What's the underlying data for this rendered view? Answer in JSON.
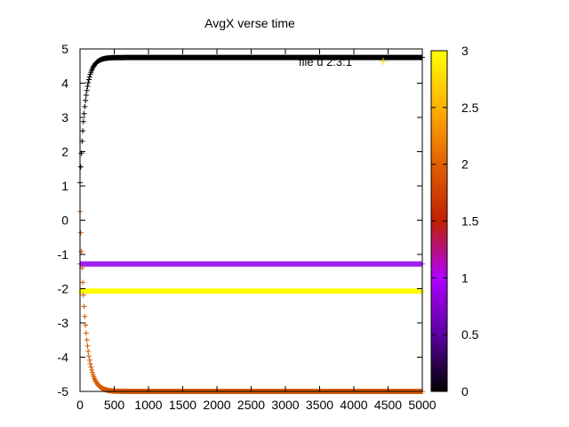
{
  "chart_data": {
    "type": "scatter",
    "title": "AvgX  verse time",
    "xlabel": "",
    "ylabel": "",
    "xlim": [
      0,
      5000
    ],
    "ylim": [
      -5,
      5
    ],
    "x_ticks": [
      "0",
      "500",
      "1000",
      "1500",
      "2000",
      "2500",
      "3000",
      "3500",
      "4000",
      "4500",
      "5000"
    ],
    "y_ticks": [
      "5",
      "4",
      "3",
      "2",
      "1",
      "0",
      "-1",
      "-2",
      "-3",
      "-4",
      "-5"
    ],
    "grid": false,
    "marker": "plus",
    "legend": {
      "label": "file u 2:3:1",
      "placement": "top-right",
      "marker_color": "#ffd400"
    },
    "colorbar": {
      "range": [
        0,
        3
      ],
      "ticks": [
        "3",
        "2.5",
        "2",
        "1.5",
        "1",
        "0.5",
        "0"
      ],
      "palette": [
        "#000000",
        "#5a00a0",
        "#b000ff",
        "#c02000",
        "#e06000",
        "#ffb000",
        "#ffff00"
      ]
    },
    "series": [
      {
        "color_value": 0,
        "color": "#000000",
        "shape": "rise",
        "start": 1.1,
        "plateau": 4.75,
        "tau": 75
      },
      {
        "color_value": 1.1,
        "color": "#a020f0",
        "shape": "flat",
        "value": -1.28
      },
      {
        "color_value": 2.9,
        "color": "#ffff00",
        "shape": "flat",
        "value": -2.07
      },
      {
        "color_value": 1.9,
        "color": "#d45a00",
        "shape": "decay",
        "start": 0.25,
        "plateau": -5.0,
        "tau": 80
      }
    ]
  }
}
